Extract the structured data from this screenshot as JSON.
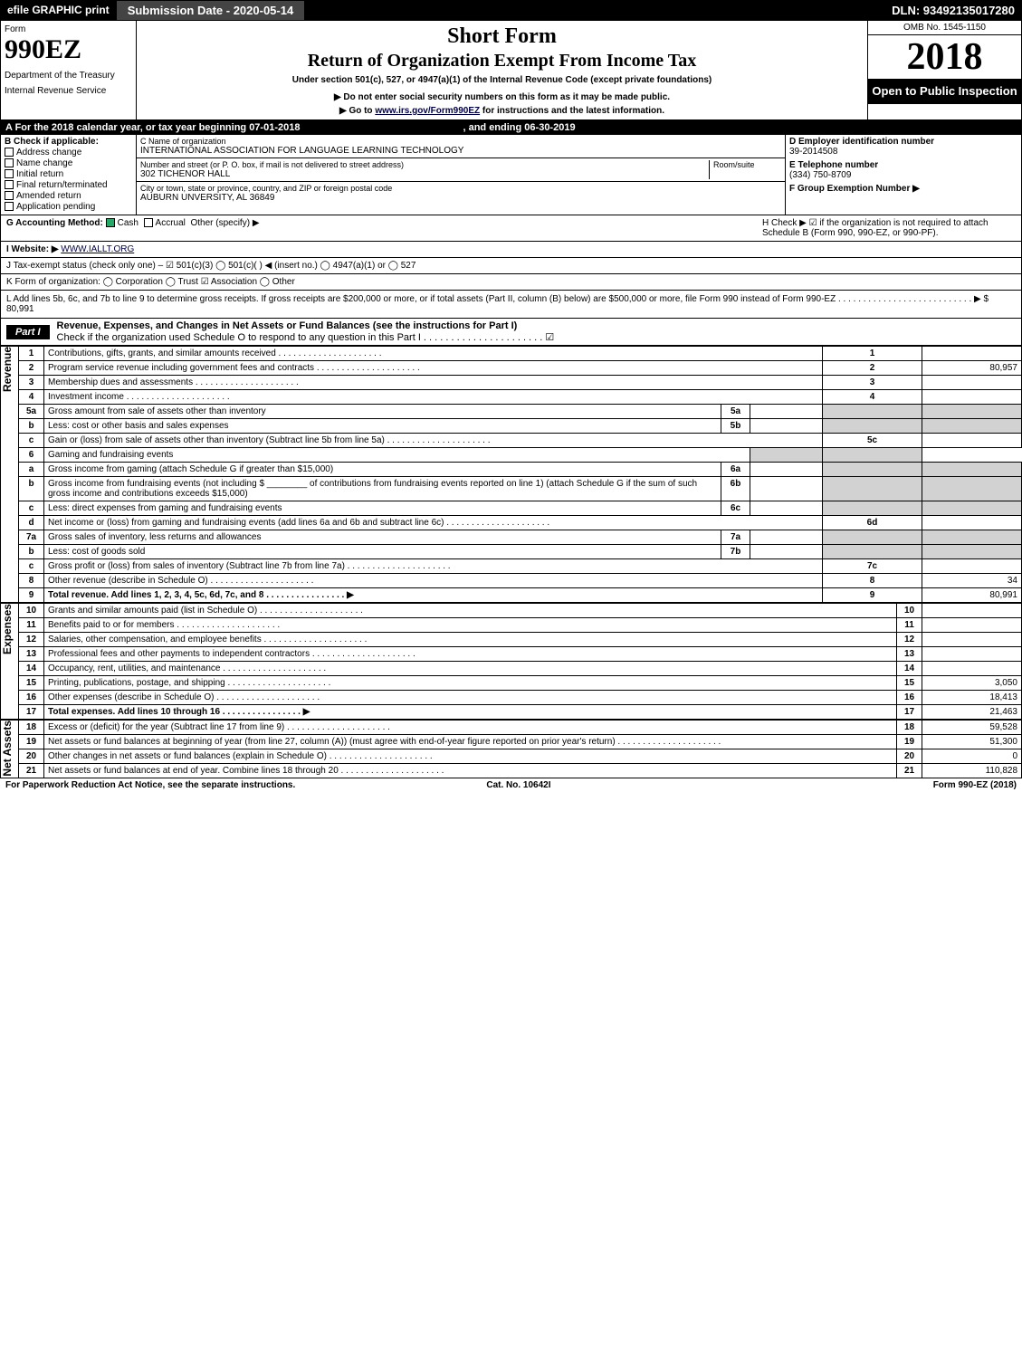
{
  "top": {
    "efile": "efile GRAPHIC print",
    "submission": "Submission Date - 2020-05-14",
    "dln": "DLN: 93492135017280"
  },
  "header": {
    "form_label": "Form",
    "form_number": "990EZ",
    "dept": "Department of the Treasury",
    "irs_line": "Internal Revenue Service",
    "short_form": "Short Form",
    "title": "Return of Organization Exempt From Income Tax",
    "subtitle": "Under section 501(c), 527, or 4947(a)(1) of the Internal Revenue Code (except private foundations)",
    "note1": "▶ Do not enter social security numbers on this form as it may be made public.",
    "note2_pre": "▶ Go to ",
    "note2_link": "www.irs.gov/Form990EZ",
    "note2_post": " for instructions and the latest information.",
    "omb": "OMB No. 1545-1150",
    "year": "2018",
    "open": "Open to Public Inspection"
  },
  "period": {
    "label_a": "A For the 2018 calendar year, or tax year beginning 07-01-2018",
    "label_b": ", and ending 06-30-2019"
  },
  "boxB": {
    "title": "B Check if applicable:",
    "items": [
      "Address change",
      "Name change",
      "Initial return",
      "Final return/terminated",
      "Amended return",
      "Application pending"
    ]
  },
  "boxC": {
    "label": "C Name of organization",
    "name": "INTERNATIONAL ASSOCIATION FOR LANGUAGE LEARNING TECHNOLOGY",
    "street_label": "Number and street (or P. O. box, if mail is not delivered to street address)",
    "room_label": "Room/suite",
    "street": "302 TICHENOR HALL",
    "city_label": "City or town, state or province, country, and ZIP or foreign postal code",
    "city": "AUBURN UNVERSITY, AL  36849"
  },
  "boxD": {
    "label": "D Employer identification number",
    "ein": "39-2014508",
    "tel_label": "E Telephone number",
    "tel": "(334) 750-8709",
    "grp_label": "F Group Exemption Number  ▶"
  },
  "g": {
    "label": "G Accounting Method:",
    "cash": "Cash",
    "accrual": "Accrual",
    "other": "Other (specify) ▶"
  },
  "h": {
    "text": "H  Check ▶ ☑ if the organization is not required to attach Schedule B (Form 990, 990-EZ, or 990-PF)."
  },
  "i": {
    "label": "I Website: ▶",
    "value": "WWW.IALLT.ORG"
  },
  "j": {
    "label": "J Tax-exempt status (check only one) – ☑ 501(c)(3)  ◯ 501(c)(  ) ◀ (insert no.)  ◯ 4947(a)(1) or  ◯ 527"
  },
  "k": {
    "label": "K Form of organization:  ◯ Corporation  ◯ Trust  ☑ Association  ◯ Other"
  },
  "l": {
    "text": "L Add lines 5b, 6c, and 7b to line 9 to determine gross receipts. If gross receipts are $200,000 or more, or if total assets (Part II, column (B) below) are $500,000 or more, file Form 990 instead of Form 990-EZ  . . . . . . . . . . . . . . . . . . . . . . . . . . .  ▶ $ 80,991"
  },
  "part1": {
    "title": "Revenue, Expenses, and Changes in Net Assets or Fund Balances (see the instructions for Part I)",
    "check_line": "Check if the organization used Schedule O to respond to any question in this Part I . . . . . . . . . . . . . . . . . . . . . . ☑"
  },
  "sections": {
    "revenue": "Revenue",
    "expenses": "Expenses",
    "netassets": "Net Assets"
  },
  "lines": [
    {
      "n": "1",
      "d": "Contributions, gifts, grants, and similar amounts received",
      "ln": "1",
      "v": ""
    },
    {
      "n": "2",
      "d": "Program service revenue including government fees and contracts",
      "ln": "2",
      "v": "80,957"
    },
    {
      "n": "3",
      "d": "Membership dues and assessments",
      "ln": "3",
      "v": ""
    },
    {
      "n": "4",
      "d": "Investment income",
      "ln": "4",
      "v": ""
    },
    {
      "n": "5a",
      "d": "Gross amount from sale of assets other than inventory",
      "sub": "5a",
      "sv": ""
    },
    {
      "n": "b",
      "d": "Less: cost or other basis and sales expenses",
      "sub": "5b",
      "sv": ""
    },
    {
      "n": "c",
      "d": "Gain or (loss) from sale of assets other than inventory (Subtract line 5b from line 5a)",
      "ln": "5c",
      "v": ""
    },
    {
      "n": "6",
      "d": "Gaming and fundraising events",
      "hdr": true
    },
    {
      "n": "a",
      "d": "Gross income from gaming (attach Schedule G if greater than $15,000)",
      "sub": "6a",
      "sv": ""
    },
    {
      "n": "b",
      "d": "Gross income from fundraising events (not including $ ________ of contributions from fundraising events reported on line 1) (attach Schedule G if the sum of such gross income and contributions exceeds $15,000)",
      "sub": "6b",
      "sv": ""
    },
    {
      "n": "c",
      "d": "Less: direct expenses from gaming and fundraising events",
      "sub": "6c",
      "sv": ""
    },
    {
      "n": "d",
      "d": "Net income or (loss) from gaming and fundraising events (add lines 6a and 6b and subtract line 6c)",
      "ln": "6d",
      "v": ""
    },
    {
      "n": "7a",
      "d": "Gross sales of inventory, less returns and allowances",
      "sub": "7a",
      "sv": ""
    },
    {
      "n": "b",
      "d": "Less: cost of goods sold",
      "sub": "7b",
      "sv": ""
    },
    {
      "n": "c",
      "d": "Gross profit or (loss) from sales of inventory (Subtract line 7b from line 7a)",
      "ln": "7c",
      "v": ""
    },
    {
      "n": "8",
      "d": "Other revenue (describe in Schedule O)",
      "ln": "8",
      "v": "34"
    },
    {
      "n": "9",
      "d": "Total revenue. Add lines 1, 2, 3, 4, 5c, 6d, 7c, and 8",
      "ln": "9",
      "v": "80,991",
      "bold": true,
      "arrow": true
    }
  ],
  "exp_lines": [
    {
      "n": "10",
      "d": "Grants and similar amounts paid (list in Schedule O)",
      "ln": "10",
      "v": ""
    },
    {
      "n": "11",
      "d": "Benefits paid to or for members",
      "ln": "11",
      "v": ""
    },
    {
      "n": "12",
      "d": "Salaries, other compensation, and employee benefits",
      "ln": "12",
      "v": ""
    },
    {
      "n": "13",
      "d": "Professional fees and other payments to independent contractors",
      "ln": "13",
      "v": ""
    },
    {
      "n": "14",
      "d": "Occupancy, rent, utilities, and maintenance",
      "ln": "14",
      "v": ""
    },
    {
      "n": "15",
      "d": "Printing, publications, postage, and shipping",
      "ln": "15",
      "v": "3,050"
    },
    {
      "n": "16",
      "d": "Other expenses (describe in Schedule O)",
      "ln": "16",
      "v": "18,413"
    },
    {
      "n": "17",
      "d": "Total expenses. Add lines 10 through 16",
      "ln": "17",
      "v": "21,463",
      "bold": true,
      "arrow": true
    }
  ],
  "na_lines": [
    {
      "n": "18",
      "d": "Excess or (deficit) for the year (Subtract line 17 from line 9)",
      "ln": "18",
      "v": "59,528"
    },
    {
      "n": "19",
      "d": "Net assets or fund balances at beginning of year (from line 27, column (A)) (must agree with end-of-year figure reported on prior year's return)",
      "ln": "19",
      "v": "51,300"
    },
    {
      "n": "20",
      "d": "Other changes in net assets or fund balances (explain in Schedule O)",
      "ln": "20",
      "v": "0"
    },
    {
      "n": "21",
      "d": "Net assets or fund balances at end of year. Combine lines 18 through 20",
      "ln": "21",
      "v": "110,828"
    }
  ],
  "footer": {
    "left": "For Paperwork Reduction Act Notice, see the separate instructions.",
    "mid": "Cat. No. 10642I",
    "right": "Form 990-EZ (2018)"
  },
  "colors": {
    "black": "#000000",
    "shade": "#d2d2d2",
    "white": "#ffffff"
  }
}
